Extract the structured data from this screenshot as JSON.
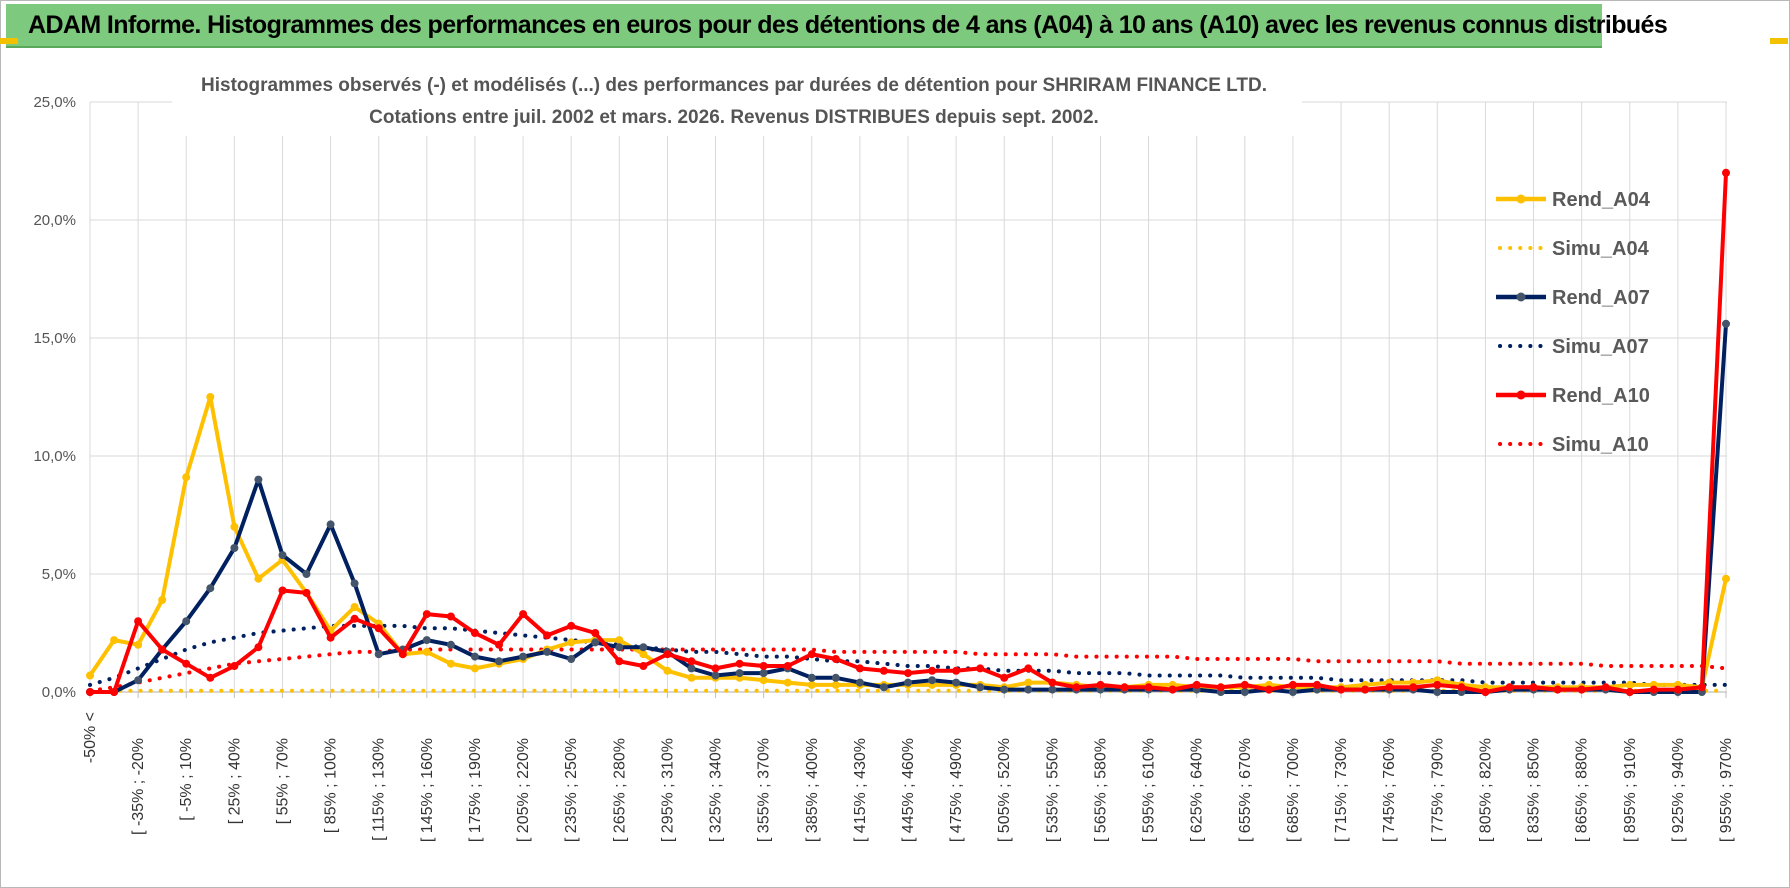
{
  "header": {
    "banner_title": "ADAM Informe. Histogrammes des performances en euros pour des détentions de 4 ans (A04) à 10 ans (A10) avec les revenus connus distribués"
  },
  "chart_data": {
    "type": "line",
    "title_lines": [
      "Histogrammes observés (-) et modélisés (...) des performances par durées de détention pour SHRIRAM FINANCE LTD.",
      "Cotations entre juil. 2002 et mars. 2026.  Revenus DISTRIBUES depuis sept. 2002."
    ],
    "ylim": [
      0,
      25
    ],
    "y_ticks": [
      {
        "value": 0,
        "label": "0,0%"
      },
      {
        "value": 5,
        "label": "5,0%"
      },
      {
        "value": 10,
        "label": "10,0%"
      },
      {
        "value": 15,
        "label": "15,0%"
      },
      {
        "value": 20,
        "label": "20,0%"
      },
      {
        "value": 25,
        "label": "25,0%"
      }
    ],
    "x_tick_labels": [
      "-50% <",
      "[ -35% ; -20%",
      "[ -5% ; 10%",
      "[ 25% ; 40%",
      "[ 55% ; 70%",
      "[ 85% ; 100%",
      "[ 115% ; 130%",
      "[ 145% ; 160%",
      "[ 175% ; 190%",
      "[ 205% ; 220%",
      "[ 235% ; 250%",
      "[ 265% ; 280%",
      "[ 295% ; 310%",
      "[ 325% ; 340%",
      "[ 355% ; 370%",
      "[ 385% ; 400%",
      "[ 415% ; 430%",
      "[ 445% ; 460%",
      "[ 475% ; 490%",
      "[ 505% ; 520%",
      "[ 535% ; 550%",
      "[ 565% ; 580%",
      "[ 595% ; 610%",
      "[ 625% ; 640%",
      "[ 655% ; 670%",
      "[ 685% ; 700%",
      "[ 715% ; 730%",
      "[ 745% ; 760%",
      "[ 775% ; 790%",
      "[ 805% ; 820%",
      "[ 835% ; 850%",
      "[ 865% ; 880%",
      "[ 895% ; 910%",
      "[ 925% ; 940%",
      "[ 955% ; 970%"
    ],
    "n_bins": 69,
    "x_tick_every": 2,
    "legend": {
      "position": "right"
    },
    "series": [
      {
        "name": "Rend_A04",
        "color": "#FFC000",
        "style": "solid",
        "values": [
          0.7,
          2.2,
          2.0,
          3.9,
          9.1,
          12.5,
          7.0,
          4.8,
          5.6,
          4.2,
          2.6,
          3.6,
          2.9,
          1.6,
          1.7,
          1.2,
          1.0,
          1.2,
          1.4,
          1.8,
          2.1,
          2.2,
          2.2,
          1.6,
          0.9,
          0.6,
          0.6,
          0.6,
          0.5,
          0.4,
          0.3,
          0.3,
          0.3,
          0.3,
          0.3,
          0.3,
          0.3,
          0.3,
          0.2,
          0.4,
          0.4,
          0.3,
          0.2,
          0.2,
          0.3,
          0.3,
          0.2,
          0.2,
          0.2,
          0.3,
          0.2,
          0.2,
          0.2,
          0.3,
          0.4,
          0.4,
          0.5,
          0.3,
          0.2,
          0.2,
          0.2,
          0.2,
          0.2,
          0.2,
          0.3,
          0.3,
          0.3,
          0.2,
          4.8
        ]
      },
      {
        "name": "Simu_A04",
        "color": "#FFC000",
        "style": "dotted",
        "values": [
          0.05,
          0.05,
          0.05,
          0.05,
          0.05,
          0.05,
          0.05,
          0.05,
          0.05,
          0.05,
          0.05,
          0.05,
          0.05,
          0.05,
          0.05,
          0.05,
          0.05,
          0.05,
          0.05,
          0.05,
          0.05,
          0.05,
          0.05,
          0.05,
          0.05,
          0.05,
          0.05,
          0.05,
          0.05,
          0.05,
          0.05,
          0.05,
          0.05,
          0.05,
          0.05,
          0.05,
          0.05,
          0.05,
          0.05,
          0.05,
          0.05,
          0.05,
          0.05,
          0.05,
          0.05,
          0.05,
          0.05,
          0.05,
          0.05,
          0.05,
          0.05,
          0.05,
          0.05,
          0.05,
          0.05,
          0.05,
          0.05,
          0.05,
          0.05,
          0.05,
          0.05,
          0.05,
          0.05,
          0.05,
          0.05,
          0.05,
          0.05,
          0.05,
          0.05
        ]
      },
      {
        "name": "Rend_A07",
        "color": "#002060",
        "style": "solid",
        "values": [
          0.0,
          0.0,
          0.5,
          1.8,
          3.0,
          4.4,
          6.1,
          9.0,
          5.8,
          5.0,
          7.1,
          4.6,
          1.6,
          1.8,
          2.2,
          2.0,
          1.5,
          1.3,
          1.5,
          1.7,
          1.4,
          2.1,
          1.9,
          1.9,
          1.7,
          1.0,
          0.7,
          0.8,
          0.8,
          1.0,
          0.6,
          0.6,
          0.4,
          0.2,
          0.4,
          0.5,
          0.4,
          0.2,
          0.1,
          0.1,
          0.1,
          0.1,
          0.1,
          0.1,
          0.1,
          0.1,
          0.1,
          0.0,
          0.0,
          0.1,
          0.0,
          0.1,
          0.1,
          0.1,
          0.1,
          0.1,
          0.0,
          0.0,
          0.0,
          0.1,
          0.1,
          0.1,
          0.1,
          0.1,
          0.0,
          0.0,
          0.0,
          0.0,
          15.6
        ]
      },
      {
        "name": "Simu_A07",
        "color": "#002060",
        "style": "dotted",
        "values": [
          0.3,
          0.6,
          1.0,
          1.4,
          1.8,
          2.1,
          2.3,
          2.5,
          2.6,
          2.7,
          2.8,
          2.8,
          2.8,
          2.8,
          2.7,
          2.7,
          2.6,
          2.5,
          2.4,
          2.3,
          2.2,
          2.1,
          2.0,
          1.9,
          1.8,
          1.7,
          1.7,
          1.6,
          1.5,
          1.5,
          1.4,
          1.3,
          1.3,
          1.2,
          1.1,
          1.1,
          1.0,
          1.0,
          0.9,
          0.9,
          0.9,
          0.8,
          0.8,
          0.8,
          0.7,
          0.7,
          0.7,
          0.7,
          0.6,
          0.6,
          0.6,
          0.6,
          0.5,
          0.5,
          0.5,
          0.5,
          0.5,
          0.5,
          0.4,
          0.4,
          0.4,
          0.4,
          0.4,
          0.4,
          0.4,
          0.3,
          0.3,
          0.3,
          0.3
        ]
      },
      {
        "name": "Rend_A10",
        "color": "#FF0000",
        "style": "solid",
        "values": [
          0.0,
          0.0,
          3.0,
          1.8,
          1.2,
          0.6,
          1.1,
          1.9,
          4.3,
          4.2,
          2.3,
          3.1,
          2.7,
          1.6,
          3.3,
          3.2,
          2.5,
          2.0,
          3.3,
          2.4,
          2.8,
          2.5,
          1.3,
          1.1,
          1.6,
          1.3,
          1.0,
          1.2,
          1.1,
          1.1,
          1.6,
          1.4,
          1.0,
          0.9,
          0.8,
          0.9,
          0.9,
          1.0,
          0.6,
          1.0,
          0.4,
          0.2,
          0.3,
          0.2,
          0.2,
          0.1,
          0.3,
          0.2,
          0.3,
          0.1,
          0.3,
          0.3,
          0.1,
          0.1,
          0.2,
          0.2,
          0.3,
          0.2,
          0.0,
          0.2,
          0.2,
          0.1,
          0.1,
          0.2,
          0.0,
          0.1,
          0.1,
          0.2,
          22.0
        ]
      },
      {
        "name": "Simu_A10",
        "color": "#FF0000",
        "style": "dotted",
        "values": [
          0.05,
          0.2,
          0.4,
          0.6,
          0.8,
          1.0,
          1.2,
          1.3,
          1.4,
          1.5,
          1.6,
          1.7,
          1.7,
          1.8,
          1.8,
          1.8,
          1.8,
          1.8,
          1.8,
          1.8,
          1.8,
          1.8,
          1.8,
          1.8,
          1.8,
          1.8,
          1.8,
          1.8,
          1.8,
          1.8,
          1.8,
          1.7,
          1.7,
          1.7,
          1.7,
          1.7,
          1.7,
          1.6,
          1.6,
          1.6,
          1.6,
          1.5,
          1.5,
          1.5,
          1.5,
          1.5,
          1.4,
          1.4,
          1.4,
          1.4,
          1.4,
          1.3,
          1.3,
          1.3,
          1.3,
          1.3,
          1.3,
          1.2,
          1.2,
          1.2,
          1.2,
          1.2,
          1.2,
          1.1,
          1.1,
          1.1,
          1.1,
          1.1,
          1.0
        ]
      }
    ]
  }
}
